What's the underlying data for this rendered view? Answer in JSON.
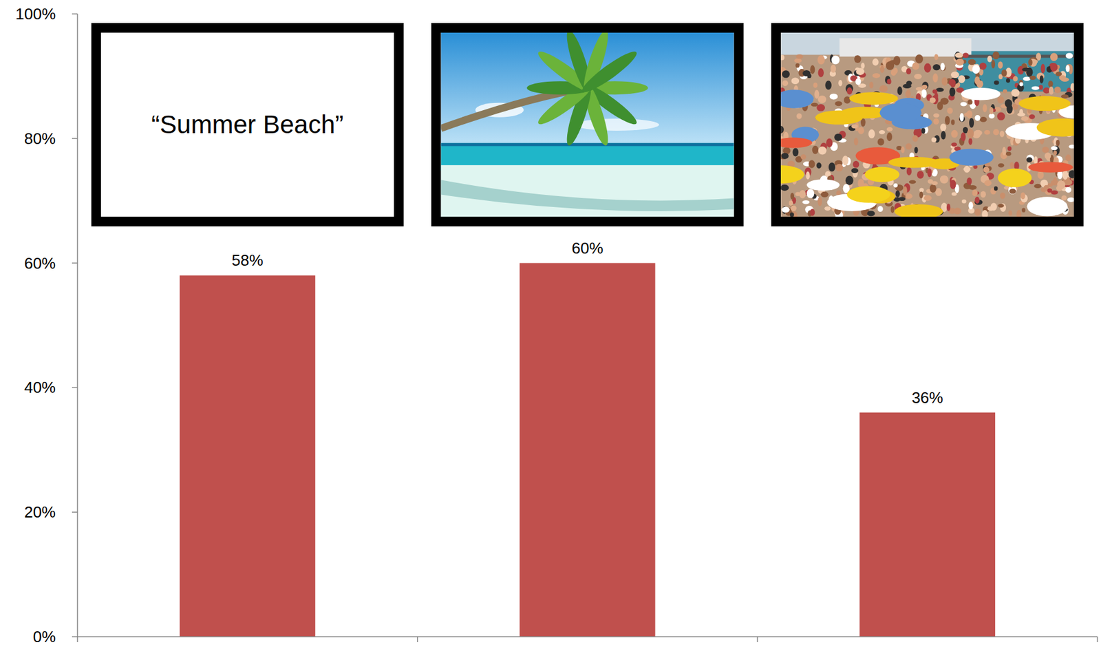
{
  "chart_data": {
    "type": "bar",
    "categories": [
      "“Summer Beach”",
      null,
      null
    ],
    "values": [
      58,
      60,
      36
    ],
    "value_labels": [
      "58%",
      "60%",
      "36%"
    ],
    "data_labels": true,
    "color": "#c0504d",
    "ylim": [
      0,
      100
    ],
    "yticks": [
      {
        "value": 0,
        "label": "0%"
      },
      {
        "value": 20,
        "label": "20%"
      },
      {
        "value": 40,
        "label": "40%"
      },
      {
        "value": 60,
        "label": "60%"
      },
      {
        "value": 80,
        "label": "80%"
      },
      {
        "value": 100,
        "label": "100%"
      }
    ],
    "grid": false
  }
}
